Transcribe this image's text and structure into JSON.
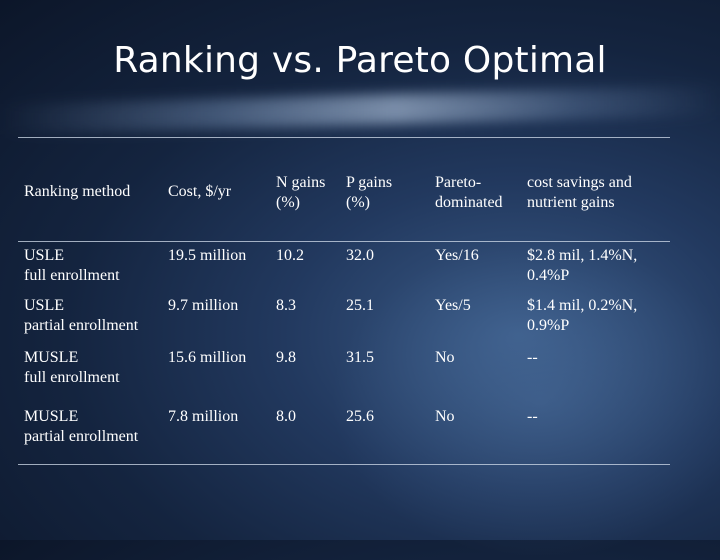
{
  "slide": {
    "title": "Ranking vs. Pareto Optimal"
  },
  "table": {
    "headers": {
      "method": "Ranking method",
      "cost": "Cost, $/yr",
      "n_gains": "N gains\n(%)",
      "p_gains": "P  gains\n(%)",
      "pareto": "Pareto-\ndominated",
      "savings": "cost savings and\nnutrient gains"
    },
    "rows": [
      {
        "method": "USLE\n full enrollment",
        "cost": "19.5 million",
        "n": "10.2",
        "p": "32.0",
        "pareto": "Yes/16",
        "savings": "$2.8 mil, 1.4%N,\n0.4%P"
      },
      {
        "method": "USLE\npartial enrollment",
        "cost": "9.7 million",
        "n": "8.3",
        "p": "25.1",
        "pareto": "Yes/5",
        "savings": "$1.4 mil, 0.2%N,\n0.9%P"
      },
      {
        "method": "MUSLE\nfull enrollment",
        "cost": "15.6 million",
        "n": "9.8",
        "p": "31.5",
        "pareto": "No",
        "savings": "--"
      },
      {
        "method": "MUSLE\npartial enrollment",
        "cost": "7.8 million",
        "n": "8.0",
        "p": "25.6",
        "pareto": "No",
        "savings": "--"
      }
    ]
  }
}
